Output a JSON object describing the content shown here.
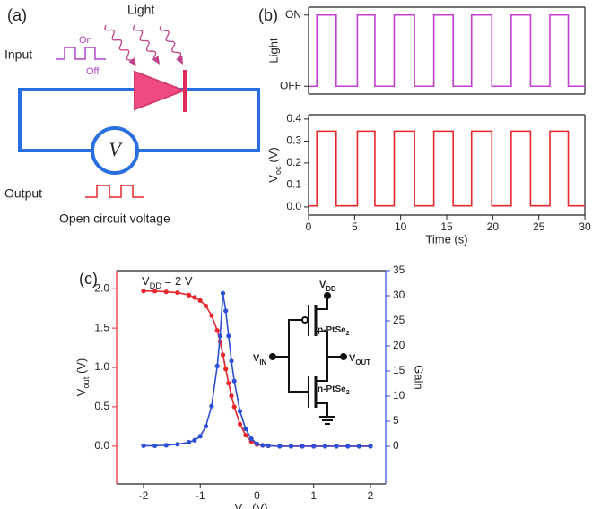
{
  "panel_labels": [
    "(a)",
    "(b)",
    "(c)"
  ],
  "diagram": {
    "light": "Light",
    "input": "Input",
    "on": "On",
    "off": "Off",
    "voltmeter": "V",
    "output": "Output",
    "caption": "Open circuit voltage"
  },
  "circuit": {
    "vdd": [
      "V",
      "DD"
    ],
    "p": [
      "p-PtSe",
      "2"
    ],
    "vin": [
      "V",
      "IN"
    ],
    "vout": [
      "V",
      "OUT"
    ],
    "n": [
      "n-PtSe",
      "2"
    ]
  },
  "chart_data": [
    {
      "type": "line",
      "ylabel": "Light",
      "x": [
        0,
        0.9,
        0.9,
        3.0,
        3.0,
        5.3,
        5.3,
        7.2,
        7.2,
        9.3,
        9.3,
        11.5,
        11.5,
        13.6,
        13.6,
        15.7,
        15.7,
        17.7,
        17.7,
        19.9,
        19.9,
        22.0,
        22.0,
        24.1,
        24.1,
        26.2,
        26.2,
        28.2,
        28.2,
        30
      ],
      "series": [
        {
          "name": "Light",
          "color": "#c23fd0",
          "values": [
            0,
            0,
            1,
            1,
            0,
            0,
            1,
            1,
            0,
            0,
            1,
            1,
            0,
            0,
            1,
            1,
            0,
            0,
            1,
            1,
            0,
            0,
            1,
            1,
            0,
            0,
            1,
            1,
            0,
            0
          ]
        }
      ],
      "xlim": [
        0,
        30
      ],
      "ylim": [
        -0.11,
        1.11
      ],
      "yticks": [
        {
          "value": 0,
          "label": "OFF"
        },
        {
          "value": 1,
          "label": "ON"
        }
      ]
    },
    {
      "type": "line",
      "ylabel": [
        "V",
        "oc",
        " (V)"
      ],
      "xlabel": "Time (s)",
      "x": [
        0,
        0.9,
        0.9,
        3.0,
        3.0,
        5.3,
        5.3,
        7.2,
        7.2,
        9.3,
        9.3,
        11.5,
        11.5,
        13.6,
        13.6,
        15.7,
        15.7,
        17.7,
        17.7,
        19.9,
        19.9,
        22.0,
        22.0,
        24.1,
        24.1,
        26.2,
        26.2,
        28.2,
        28.2,
        30
      ],
      "series": [
        {
          "name": "Voc",
          "color": "#e8262b",
          "values": [
            0.005,
            0.005,
            0.345,
            0.345,
            0.005,
            0.005,
            0.345,
            0.345,
            0.005,
            0.005,
            0.345,
            0.345,
            0.005,
            0.005,
            0.345,
            0.345,
            0.005,
            0.005,
            0.345,
            0.345,
            0.005,
            0.005,
            0.345,
            0.345,
            0.005,
            0.005,
            0.345,
            0.345,
            0.005,
            0.005
          ]
        }
      ],
      "xlim": [
        0,
        30
      ],
      "ylim": [
        -0.037,
        0.42
      ],
      "xticks": [
        0,
        5,
        10,
        15,
        20,
        25,
        30
      ],
      "yticks": [
        {
          "value": 0,
          "label": "0.0"
        },
        0.1,
        0.2,
        0.3,
        0.4
      ]
    },
    {
      "type": "line",
      "markers": true,
      "annotation": [
        "V",
        "DD",
        " = 2 V"
      ],
      "xlabel": [
        "V",
        "in",
        " (V)"
      ],
      "ylabel": [
        "V",
        "out",
        " (V)"
      ],
      "y2label": "Gain",
      "ycolor": "#e8262b",
      "y2color": "#2d4fd6",
      "x": [
        -2,
        -1.8,
        -1.6,
        -1.4,
        -1.2,
        -1.1,
        -1,
        -0.9,
        -0.8,
        -0.7,
        -0.65,
        -0.6,
        -0.55,
        -0.5,
        -0.45,
        -0.4,
        -0.3,
        -0.2,
        -0.1,
        0,
        0.1,
        0.2,
        0.4,
        0.6,
        0.8,
        1,
        1.2,
        1.4,
        1.6,
        1.8,
        2
      ],
      "series": [
        {
          "name": "Vout",
          "color": "#e8262b",
          "values": [
            1.97,
            1.97,
            1.96,
            1.95,
            1.92,
            1.89,
            1.85,
            1.78,
            1.66,
            1.47,
            1.33,
            1.16,
            0.98,
            0.8,
            0.64,
            0.5,
            0.28,
            0.14,
            0.06,
            0.02,
            0.01,
            0.005,
            0,
            0,
            0,
            0,
            0,
            0,
            0,
            0,
            0
          ]
        },
        {
          "name": "Gain",
          "color": "#2d4fd6",
          "axis": "y2",
          "values": [
            0.1,
            0.1,
            0.2,
            0.4,
            0.8,
            1.2,
            2,
            4,
            8,
            16,
            22,
            30.5,
            27,
            22,
            17,
            13,
            7,
            3.5,
            1.5,
            0.5,
            0.2,
            0.1,
            0,
            0,
            0,
            0,
            0,
            0,
            0,
            0,
            0
          ]
        }
      ],
      "xlim": [
        -2.474,
        2.269
      ],
      "ylim": [
        -0.48,
        2.23
      ],
      "y2lim": [
        -7.5,
        35
      ],
      "xticks": [
        -2,
        -1,
        0,
        1,
        2
      ],
      "yticks": [
        {
          "value": 0,
          "label": "0.0"
        },
        0.5,
        {
          "value": 1,
          "label": "1.0"
        },
        1.5,
        {
          "value": 2,
          "label": "2.0"
        }
      ],
      "y2ticks": [
        0,
        5,
        10,
        15,
        20,
        25,
        30,
        35
      ]
    }
  ]
}
